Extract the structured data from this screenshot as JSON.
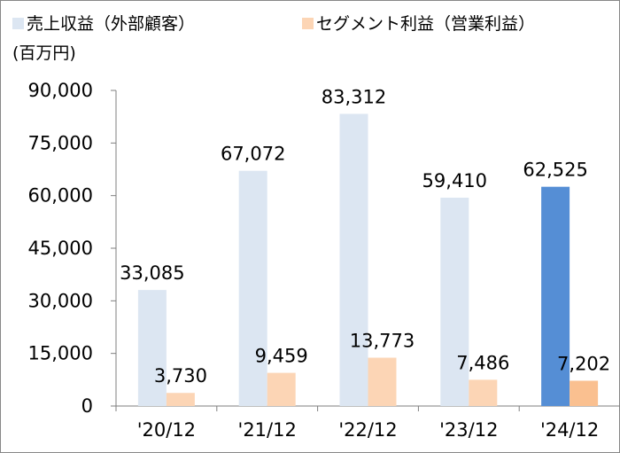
{
  "chart_data": {
    "type": "bar",
    "unit_label": "(百万円)",
    "categories": [
      "'20/12",
      "'21/12",
      "'22/12",
      "'23/12",
      "'24/12"
    ],
    "series": [
      {
        "name": "売上収益（外部顧客）",
        "values": [
          33085,
          67072,
          83312,
          59410,
          62525
        ],
        "labels": [
          "33,085",
          "67,072",
          "83,312",
          "59,410",
          "62,525"
        ],
        "color": "#dce6f2",
        "highlight_color": "#558ed5"
      },
      {
        "name": "セグメント利益（営業利益）",
        "values": [
          3730,
          9459,
          13773,
          7486,
          7202
        ],
        "labels": [
          "3,730",
          "9,459",
          "13,773",
          "7,486",
          "7,202"
        ],
        "color": "#fcd5b5",
        "highlight_color": "#fac090"
      }
    ],
    "highlight_index": 4,
    "ylim": [
      0,
      90000
    ],
    "yticks": [
      0,
      15000,
      30000,
      45000,
      60000,
      75000,
      90000
    ],
    "ytick_labels": [
      "0",
      "15,000",
      "30,000",
      "45,000",
      "60,000",
      "75,000",
      "90,000"
    ],
    "grid": false,
    "legend_position": "top-left"
  }
}
